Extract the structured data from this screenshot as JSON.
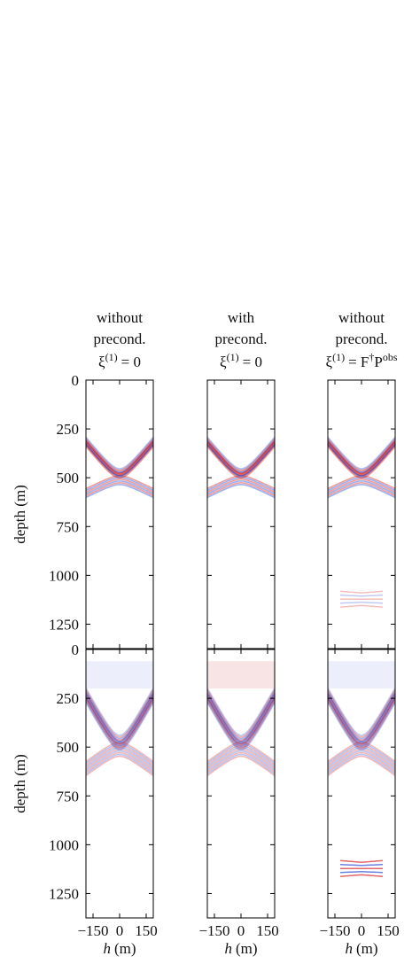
{
  "chart_data": [
    {
      "type": "heatmap",
      "title": [
        "without",
        "precond."
      ],
      "formula": [
        {
          "text": "ξ"
        },
        {
          "text": "(1)",
          "sup": true
        },
        {
          "text": "= 0"
        }
      ],
      "ylabel": "depth (m)",
      "ylim": [
        0,
        1375
      ],
      "yticks": [
        0,
        250,
        500,
        750,
        1000,
        1250
      ],
      "xlim": [
        -190,
        190
      ]
    },
    {
      "type": "heatmap",
      "title": [
        "with",
        "precond."
      ],
      "formula": [
        {
          "text": "ξ"
        },
        {
          "text": "(1)",
          "sup": true
        },
        {
          "text": "= 0"
        }
      ],
      "ylim": [
        0,
        1375
      ],
      "xlim": [
        -190,
        190
      ]
    },
    {
      "type": "heatmap",
      "title": [
        "without",
        "precond."
      ],
      "formula": [
        {
          "text": "ξ"
        },
        {
          "text": "(1)",
          "sup": true
        },
        {
          "text": "= F"
        },
        {
          "text": "†",
          "sup": true
        },
        {
          "text": "P"
        },
        {
          "text": "obs",
          "sup": true
        }
      ],
      "ylim": [
        0,
        1375
      ],
      "xlim": [
        -190,
        190
      ]
    },
    {
      "type": "heatmap",
      "ylabel": "depth (m)",
      "ylim": [
        0,
        1375
      ],
      "yticks": [
        0,
        250,
        500,
        750,
        1000,
        1250
      ],
      "xlim": [
        -190,
        190
      ],
      "xticks": [
        {
          "value": -150,
          "label": "−150"
        },
        0,
        150
      ],
      "xlabel": {
        "symbol": "h",
        "unit": "(m)"
      }
    },
    {
      "type": "heatmap",
      "ylim": [
        0,
        1375
      ],
      "xlim": [
        -190,
        190
      ],
      "xticks": [
        {
          "value": -150,
          "label": "−150"
        },
        0,
        150
      ],
      "xlabel": {
        "symbol": "h",
        "unit": "(m)"
      }
    },
    {
      "type": "heatmap",
      "ylim": [
        0,
        1375
      ],
      "xlim": [
        -190,
        190
      ],
      "xticks": [
        {
          "value": -150,
          "label": "−150"
        },
        0,
        150
      ],
      "xlabel": {
        "symbol": "h",
        "unit": "(m)"
      }
    }
  ]
}
